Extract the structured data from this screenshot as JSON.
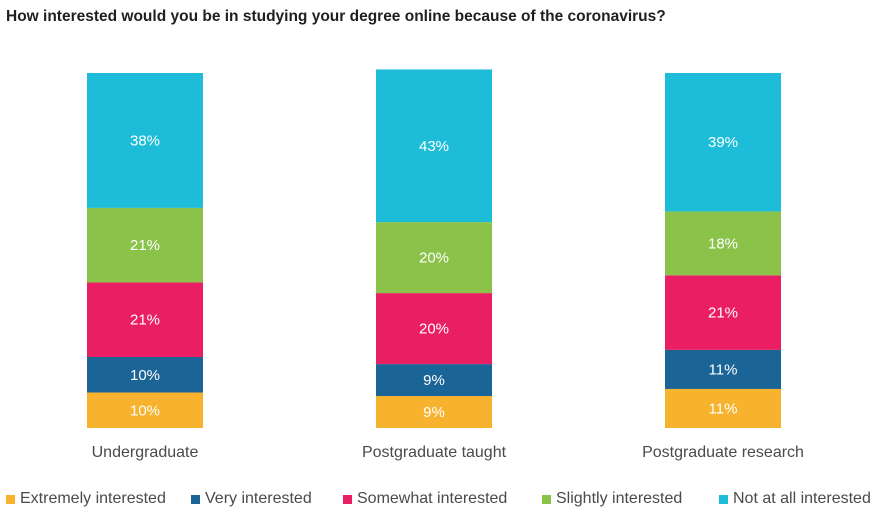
{
  "chart_data": {
    "type": "bar",
    "stacked": true,
    "title": "How interested would you be in studying your degree online because of the coronavirus?",
    "categories": [
      "Undergraduate",
      "Postgraduate taught",
      "Postgraduate research"
    ],
    "series": [
      {
        "name": "Extremely interested",
        "color": "#F7B22E",
        "values": [
          10,
          9,
          11
        ]
      },
      {
        "name": "Very interested",
        "color": "#1B6496",
        "values": [
          10,
          9,
          11
        ]
      },
      {
        "name": "Somewhat interested",
        "color": "#E91E63",
        "values": [
          21,
          20,
          21
        ]
      },
      {
        "name": "Slightly interested",
        "color": "#8BC34A",
        "values": [
          21,
          20,
          18
        ]
      },
      {
        "name": "Not at all interested",
        "color": "#1DBCD8",
        "values": [
          38,
          43,
          39
        ]
      }
    ],
    "value_suffix": "%",
    "ylim": [
      0,
      100
    ],
    "grid": false,
    "legend_position": "bottom"
  }
}
